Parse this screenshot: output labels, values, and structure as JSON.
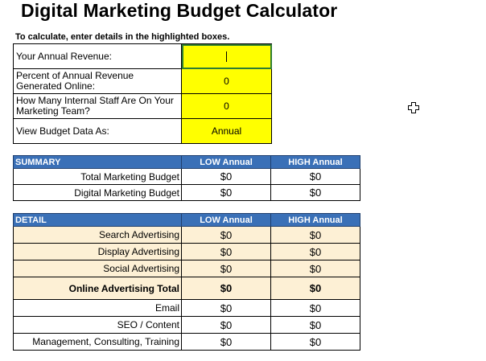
{
  "title": "Digital Marketing Budget Calculator",
  "instruction": "To calculate, enter details in the highlighted boxes.",
  "inputs": [
    {
      "label": "Your Annual Revenue:",
      "value": ""
    },
    {
      "label": "Percent of Annual Revenue Generated Online:",
      "value": "0"
    },
    {
      "label": "How Many Internal Staff Are On Your Marketing Team?",
      "value": "0"
    },
    {
      "label": "View Budget Data As:",
      "value": "Annual"
    }
  ],
  "summary": {
    "header": [
      "SUMMARY",
      "LOW Annual",
      "HIGH Annual"
    ],
    "rows": [
      {
        "label": "Total Marketing Budget",
        "low": "$0",
        "high": "$0"
      },
      {
        "label": "Digital Marketing Budget",
        "low": "$0",
        "high": "$0"
      }
    ]
  },
  "detail": {
    "header": [
      "DETAIL",
      "LOW Annual",
      "HIGH Annual"
    ],
    "rows": [
      {
        "label": "Search Advertising",
        "low": "$0",
        "high": "$0"
      },
      {
        "label": "Display Advertising",
        "low": "$0",
        "high": "$0"
      },
      {
        "label": "Social Advertising",
        "low": "$0",
        "high": "$0"
      },
      {
        "label": "Online Advertising Total",
        "low": "$0",
        "high": "$0"
      },
      {
        "label": "Email",
        "low": "$0",
        "high": "$0"
      },
      {
        "label": "SEO / Content",
        "low": "$0",
        "high": "$0"
      },
      {
        "label": "Management, Consulting, Training",
        "low": "$0",
        "high": "$0"
      }
    ]
  },
  "colors": {
    "header_blue": "#3a70b7",
    "input_yellow": "#ffff00",
    "row_tan": "#fdf0d5",
    "active_cell_border": "#2e7d32"
  },
  "icons": [
    "move-cursor-icon"
  ]
}
